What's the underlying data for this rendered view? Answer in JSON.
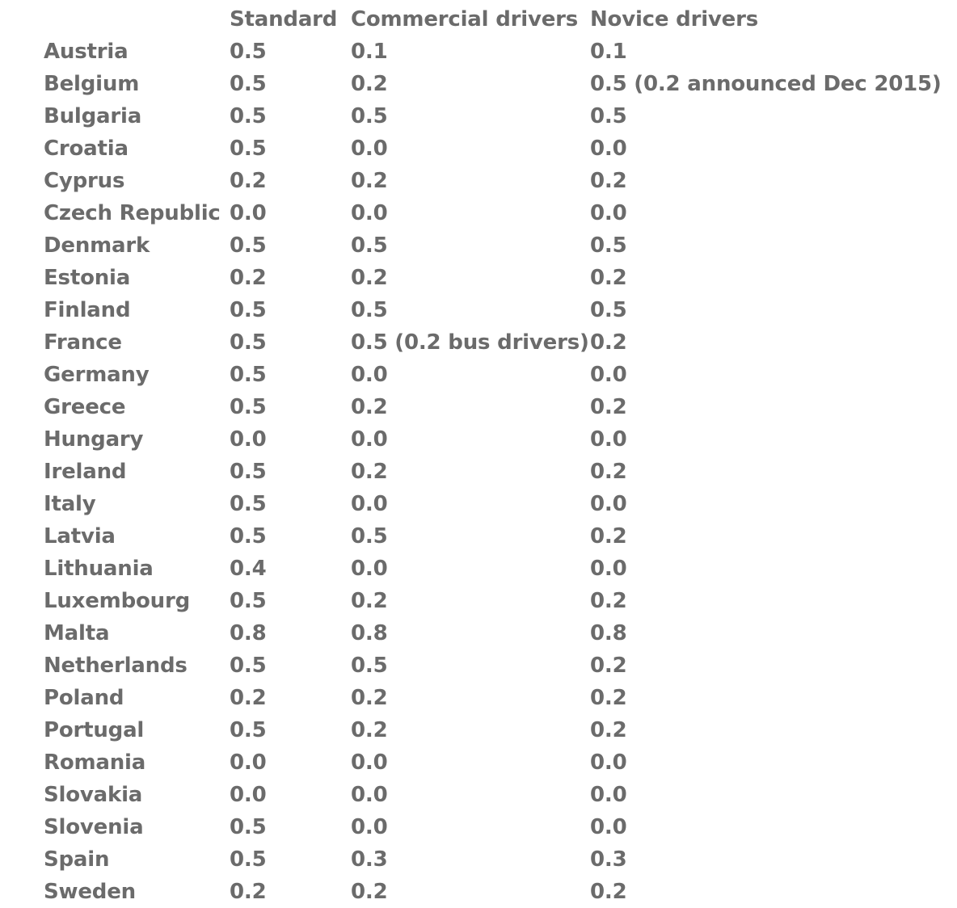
{
  "table": {
    "headers": [
      "",
      "Standard",
      "Commercial drivers",
      "Novice drivers"
    ],
    "rows": [
      [
        "Austria",
        "0.5",
        "0.1",
        "0.1"
      ],
      [
        "Belgium",
        "0.5",
        "0.2",
        "0.5 (0.2 announced Dec 2015)"
      ],
      [
        "Bulgaria",
        "0.5",
        "0.5",
        "0.5"
      ],
      [
        "Croatia",
        "0.5",
        "0.0",
        "0.0"
      ],
      [
        "Cyprus",
        "0.2",
        "0.2",
        "0.2"
      ],
      [
        "Czech Republic",
        "0.0",
        "0.0",
        "0.0"
      ],
      [
        "Denmark",
        "0.5",
        "0.5",
        "0.5"
      ],
      [
        "Estonia",
        "0.2",
        "0.2",
        "0.2"
      ],
      [
        "Finland",
        "0.5",
        "0.5",
        "0.5"
      ],
      [
        "France",
        "0.5",
        "0.5 (0.2 bus drivers)",
        "0.2"
      ],
      [
        "Germany",
        "0.5",
        "0.0",
        "0.0"
      ],
      [
        "Greece",
        "0.5",
        "0.2",
        "0.2"
      ],
      [
        "Hungary",
        "0.0",
        "0.0",
        "0.0"
      ],
      [
        "Ireland",
        "0.5",
        "0.2",
        "0.2"
      ],
      [
        "Italy",
        "0.5",
        "0.0",
        "0.0"
      ],
      [
        "Latvia",
        "0.5",
        "0.5",
        "0.2"
      ],
      [
        "Lithuania",
        "0.4",
        "0.0",
        "0.0"
      ],
      [
        "Luxembourg",
        "0.5",
        "0.2",
        "0.2"
      ],
      [
        "Malta",
        "0.8",
        "0.8",
        "0.8"
      ],
      [
        "Netherlands",
        "0.5",
        "0.5",
        "0.2"
      ],
      [
        "Poland",
        "0.2",
        "0.2",
        "0.2"
      ],
      [
        "Portugal",
        "0.5",
        "0.2",
        "0.2"
      ],
      [
        "Romania",
        "0.0",
        "0.0",
        "0.0"
      ],
      [
        "Slovakia",
        "0.0",
        "0.0",
        "0.0"
      ],
      [
        "Slovenia",
        "0.5",
        "0.0",
        "0.0"
      ],
      [
        "Spain",
        "0.5",
        "0.3",
        "0.3"
      ],
      [
        "Sweden",
        "0.2",
        "0.2",
        "0.2"
      ]
    ]
  }
}
